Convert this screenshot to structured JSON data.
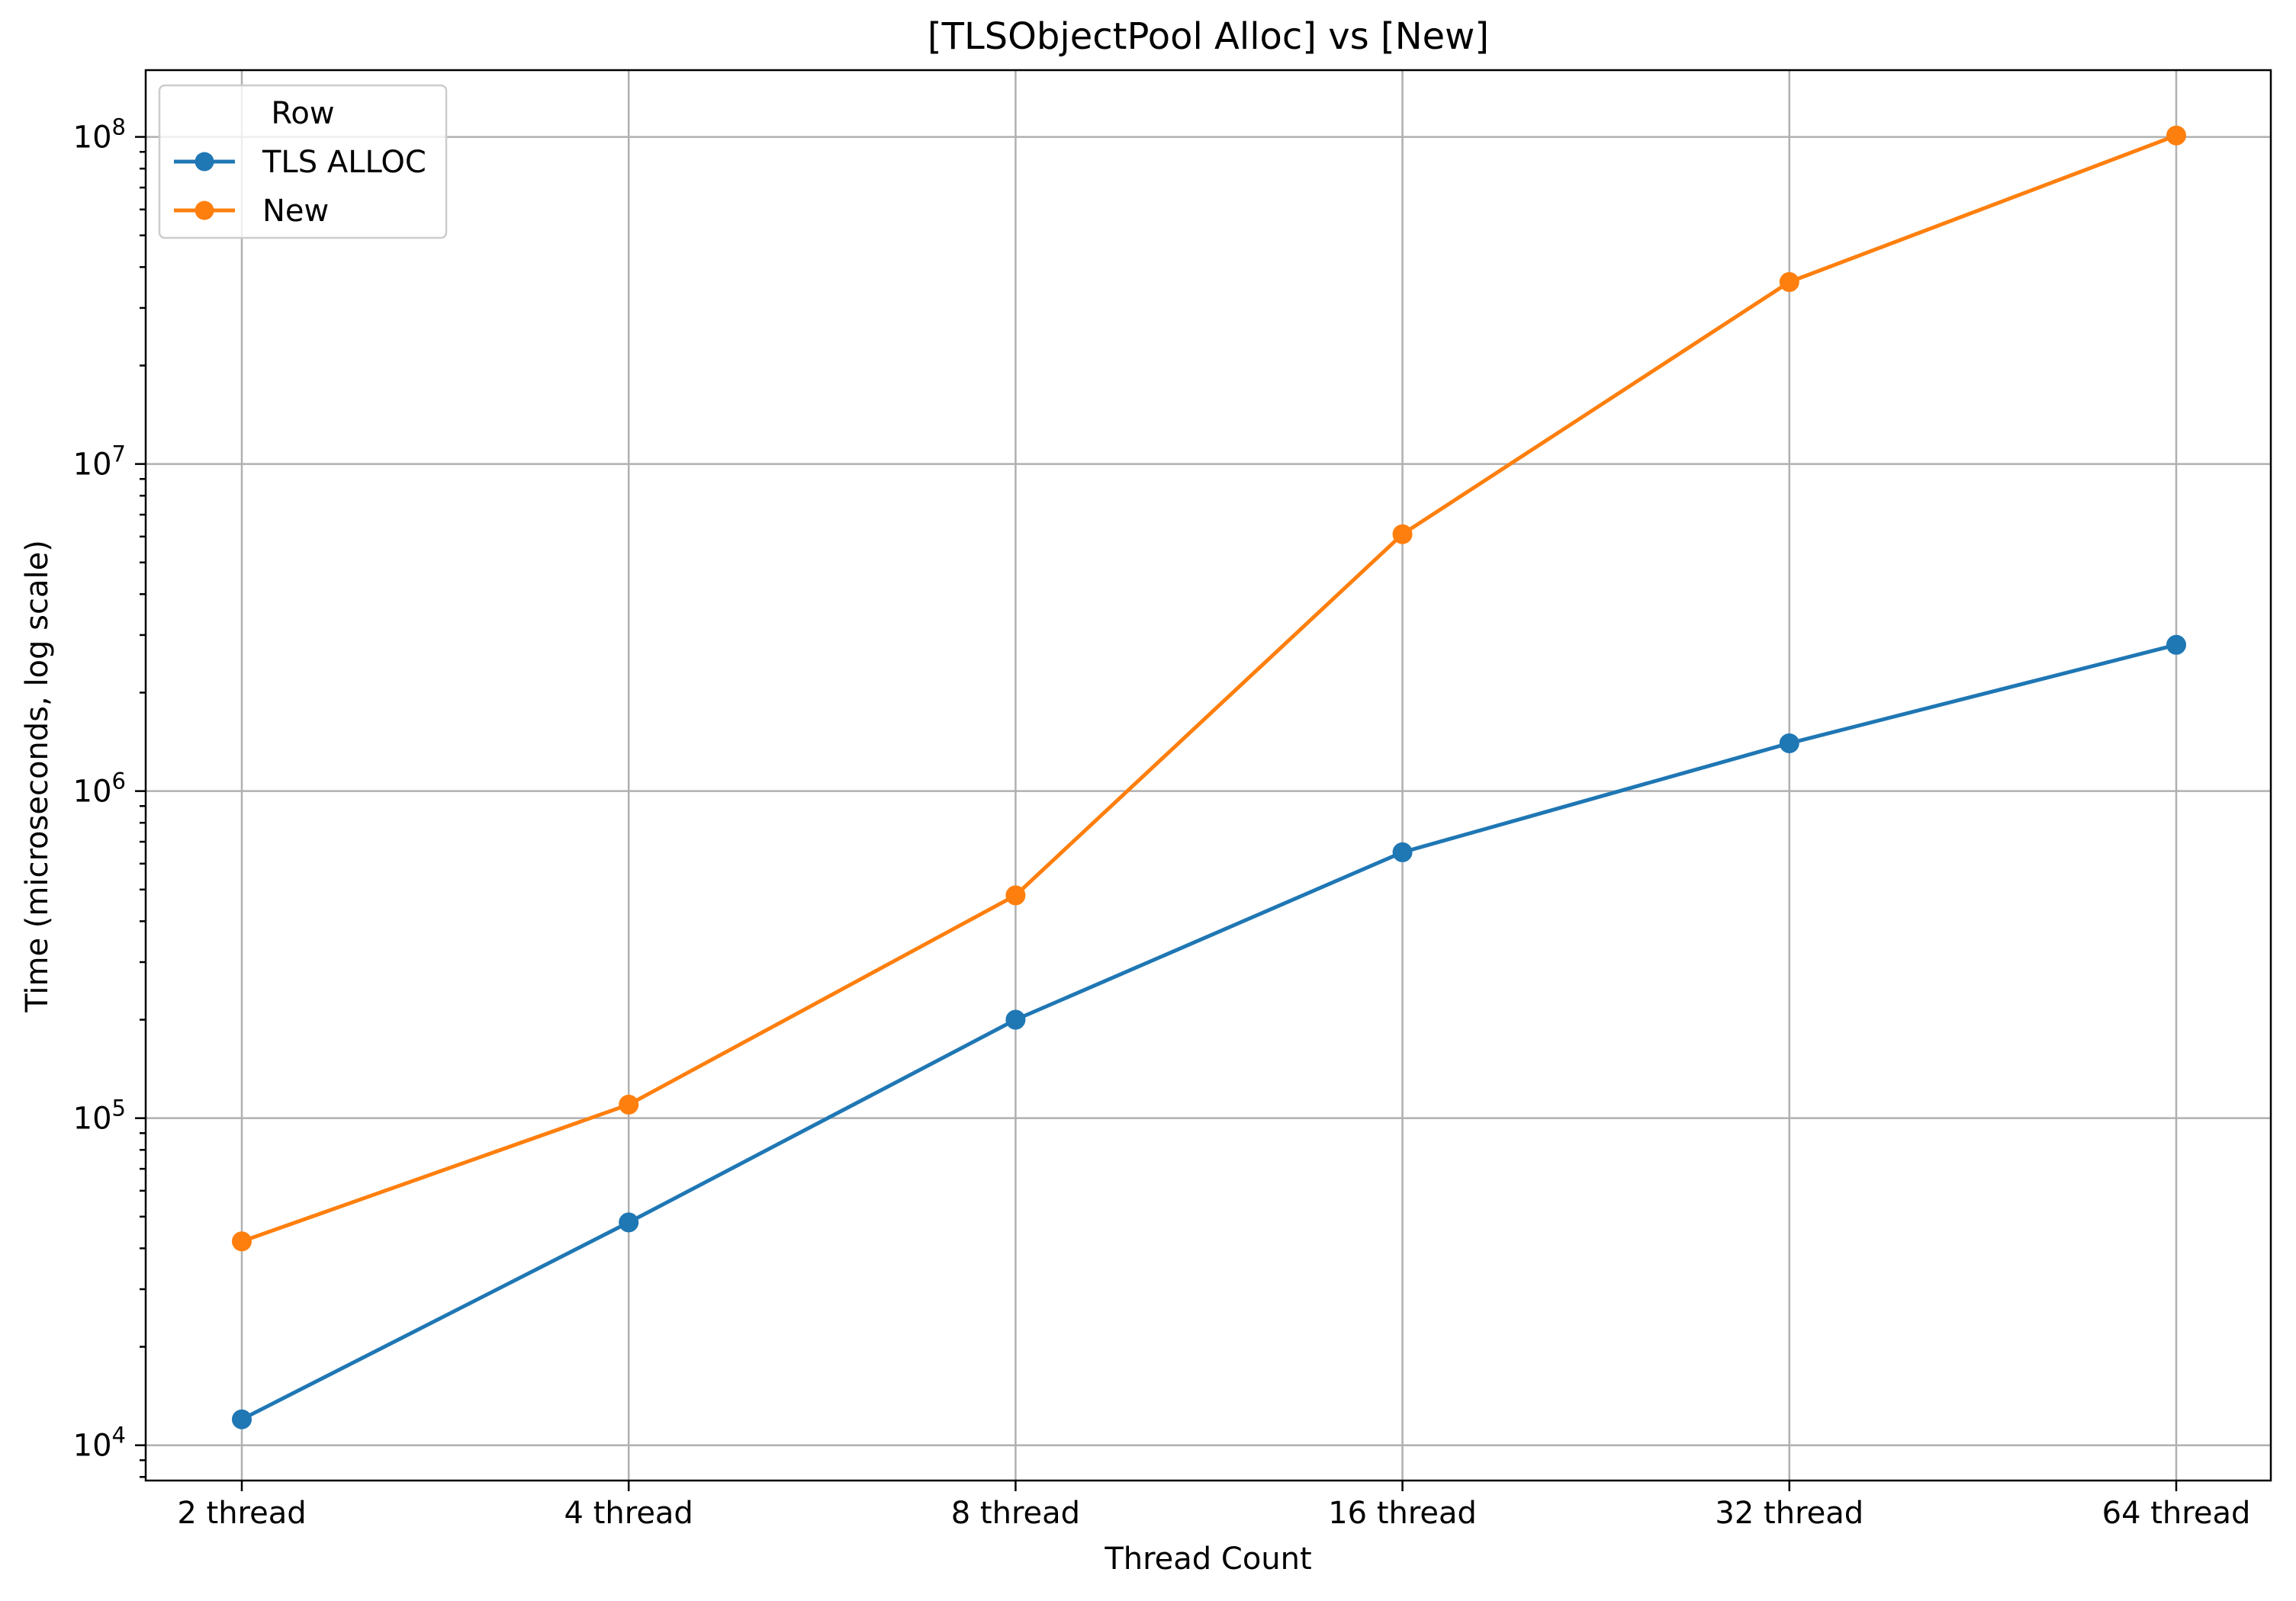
{
  "chart_data": {
    "type": "line",
    "title": "[TLSObjectPool Alloc] vs [New]",
    "xlabel": "Thread Count",
    "ylabel": "Time (microseconds, log scale)",
    "categories": [
      "2 thread",
      "4 thread",
      "8 thread",
      "16 thread",
      "32 thread",
      "64 thread"
    ],
    "y_scale": "log",
    "ylim": [
      7800,
      160000000
    ],
    "y_ticks": [
      10000,
      100000,
      1000000,
      10000000,
      100000000
    ],
    "y_tick_labels": [
      {
        "base": "10",
        "exp": "4"
      },
      {
        "base": "10",
        "exp": "5"
      },
      {
        "base": "10",
        "exp": "6"
      },
      {
        "base": "10",
        "exp": "7"
      },
      {
        "base": "10",
        "exp": "8"
      }
    ],
    "grid": true,
    "legend": {
      "title": "Row",
      "position": "top-left"
    },
    "series": [
      {
        "name": "TLS ALLOC",
        "color": "#1f77b4",
        "marker": "circle",
        "values": [
          12000,
          48000,
          200000,
          650000,
          1400000,
          2800000
        ]
      },
      {
        "name": "New",
        "color": "#ff7f0e",
        "marker": "circle",
        "values": [
          42000,
          110000,
          480000,
          6100000,
          36000000,
          101000000
        ]
      }
    ]
  }
}
